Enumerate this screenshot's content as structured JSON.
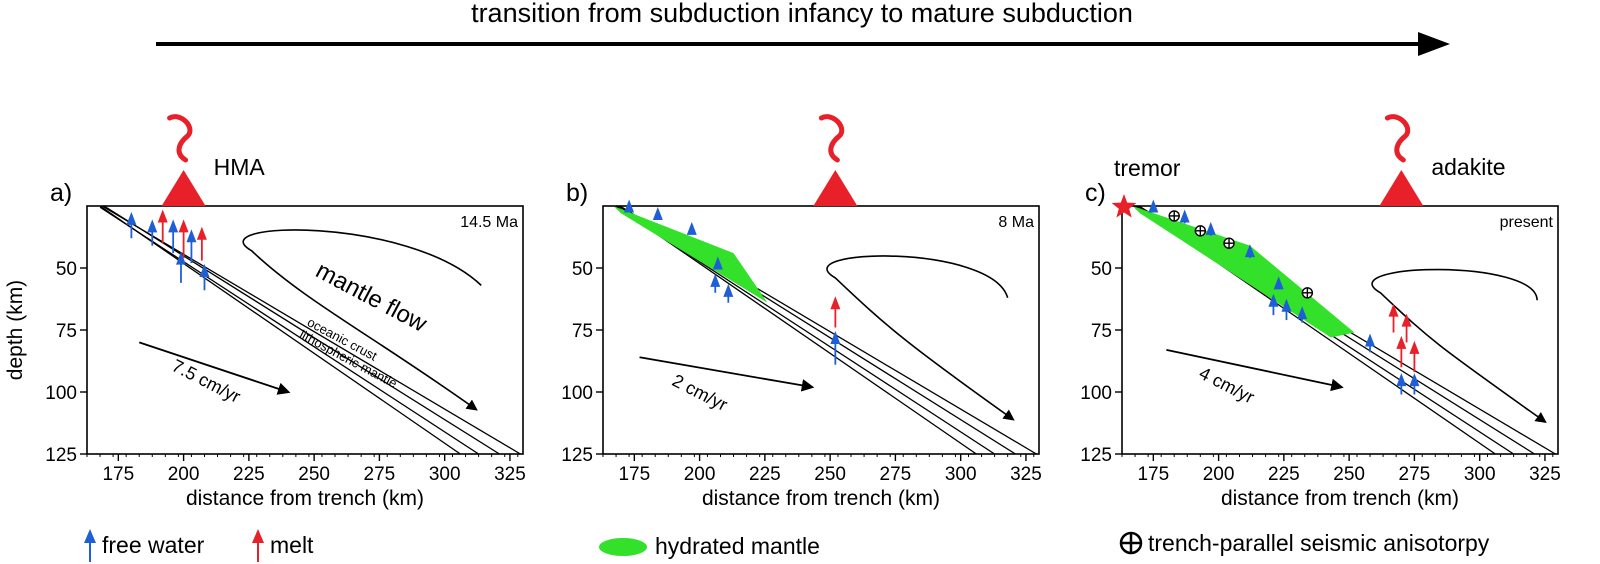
{
  "header": {
    "title": "transition from subduction infancy to mature subduction"
  },
  "panels": [
    {
      "letter": "a)",
      "age": "14.5 Ma",
      "volcano_label": "HMA",
      "rate": "7.5 cm/yr",
      "flow_label": "mantle flow",
      "layer_labels": [
        "oceanic crust",
        "lithospheric mantle"
      ]
    },
    {
      "letter": "b)",
      "age": "8 Ma",
      "rate": "2 cm/yr"
    },
    {
      "letter": "c)",
      "age": "present",
      "volcano_label": "adakite",
      "tremor_label": "tremor",
      "rate": "4 cm/yr"
    }
  ],
  "axes": {
    "xlabel": "distance from trench (km)",
    "ylabel": "depth (km)",
    "x_ticks": [
      175,
      200,
      225,
      250,
      275,
      300,
      325
    ],
    "y_ticks": [
      50,
      75,
      100,
      125
    ],
    "x_range": [
      163,
      330
    ],
    "y_range": [
      25,
      125
    ]
  },
  "legend": {
    "free_water": "free water",
    "melt": "melt",
    "hydrated_mantle": "hydrated mantle",
    "anisotropy": "trench-parallel seismic anisotorpy"
  },
  "colors": {
    "water": "#1f5fd6",
    "melt": "#e8202a",
    "hydrated": "#33e02a",
    "volcano": "#e8202a"
  }
}
